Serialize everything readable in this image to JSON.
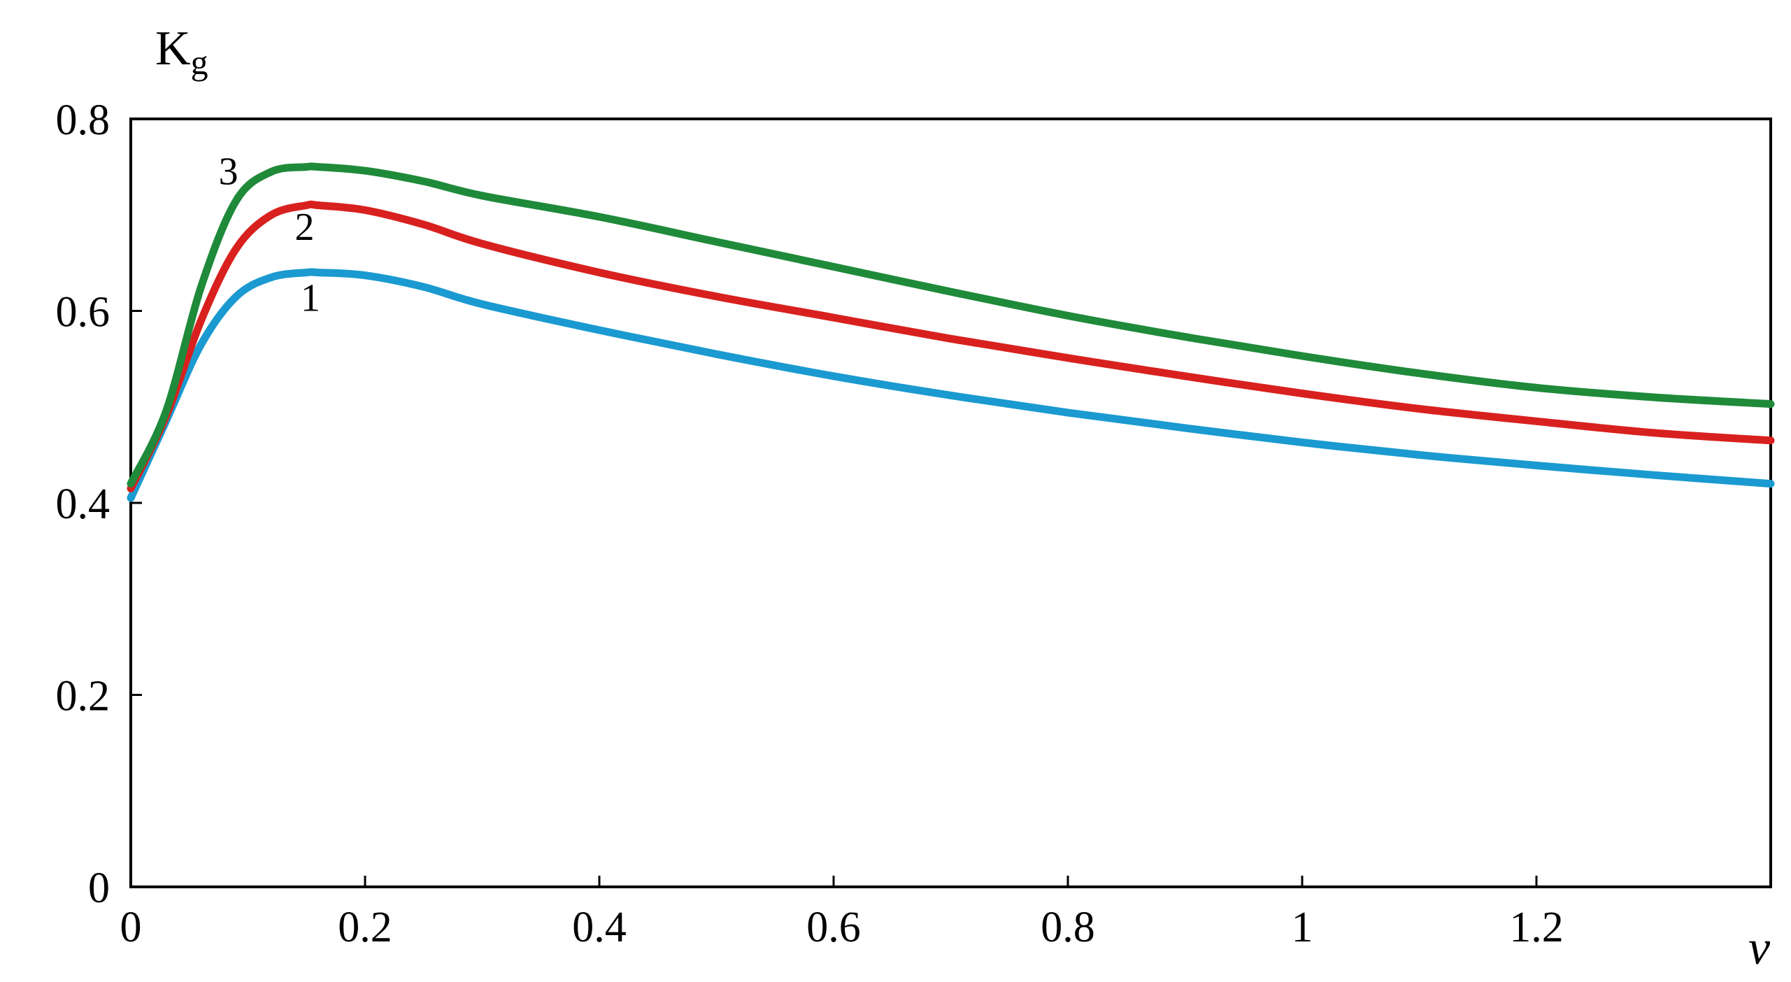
{
  "chart_data": {
    "type": "line",
    "title": "",
    "ylabel_main": "K",
    "ylabel_sub": "g",
    "xlabel": "ν",
    "xlim": [
      0,
      1.4
    ],
    "ylim": [
      0,
      0.8
    ],
    "grid": false,
    "x_ticks": [
      0,
      0.2,
      0.4,
      0.6,
      0.8,
      1.0,
      1.2
    ],
    "x_tick_labels": [
      "0",
      "0.2",
      "0.4",
      "0.6",
      "0.8",
      "1",
      "1.2"
    ],
    "y_ticks": [
      0,
      0.2,
      0.4,
      0.6,
      0.8
    ],
    "y_tick_labels": [
      "0",
      "0.2",
      "0.4",
      "0.6",
      "0.8"
    ],
    "series": [
      {
        "label": "1",
        "color": "#1a9ad0",
        "x": [
          0,
          0.03,
          0.06,
          0.09,
          0.12,
          0.15,
          0.16,
          0.2,
          0.25,
          0.3,
          0.4,
          0.5,
          0.6,
          0.7,
          0.8,
          0.9,
          1.0,
          1.1,
          1.2,
          1.3,
          1.4
        ],
        "y": [
          0.405,
          0.485,
          0.565,
          0.615,
          0.635,
          0.64,
          0.64,
          0.637,
          0.625,
          0.607,
          0.58,
          0.555,
          0.532,
          0.512,
          0.494,
          0.478,
          0.463,
          0.45,
          0.439,
          0.429,
          0.42
        ]
      },
      {
        "label": "2",
        "color": "#d8211f",
        "x": [
          0,
          0.03,
          0.06,
          0.09,
          0.12,
          0.15,
          0.16,
          0.2,
          0.25,
          0.3,
          0.4,
          0.5,
          0.6,
          0.7,
          0.8,
          0.9,
          1.0,
          1.1,
          1.2,
          1.3,
          1.4
        ],
        "y": [
          0.415,
          0.49,
          0.59,
          0.665,
          0.7,
          0.71,
          0.71,
          0.705,
          0.69,
          0.67,
          0.64,
          0.615,
          0.593,
          0.571,
          0.551,
          0.532,
          0.514,
          0.498,
          0.485,
          0.473,
          0.465
        ]
      },
      {
        "label": "3",
        "color": "#1f8a3a",
        "x": [
          0,
          0.03,
          0.06,
          0.09,
          0.12,
          0.15,
          0.16,
          0.2,
          0.25,
          0.3,
          0.4,
          0.5,
          0.6,
          0.7,
          0.8,
          0.9,
          1.0,
          1.1,
          1.2,
          1.3,
          1.4
        ],
        "y": [
          0.42,
          0.495,
          0.625,
          0.715,
          0.745,
          0.75,
          0.75,
          0.746,
          0.735,
          0.72,
          0.698,
          0.672,
          0.646,
          0.62,
          0.595,
          0.573,
          0.553,
          0.535,
          0.52,
          0.51,
          0.503
        ]
      }
    ]
  }
}
